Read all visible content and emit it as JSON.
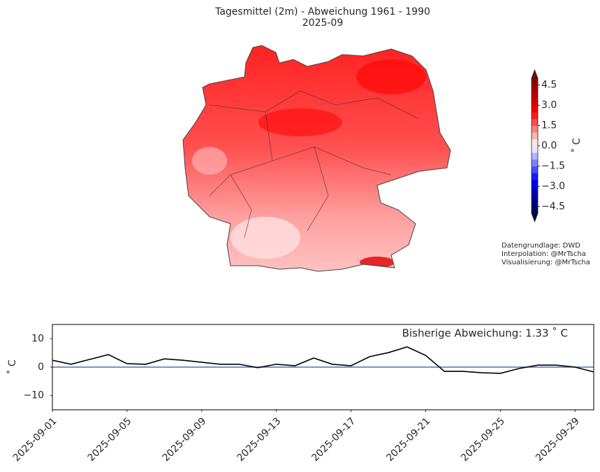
{
  "chart_data": [
    {
      "type": "map",
      "title": "Tagesmittel (2m) - Abweichung 1961 - 1990",
      "subtitle": "2025-09",
      "cmap": "seismic",
      "clim": [
        -5,
        5
      ],
      "clabel": "˚ C",
      "cticks": [
        {
          "value": 4.5,
          "label": "4.5"
        },
        {
          "value": 3,
          "label": "3.0"
        },
        {
          "value": 1.5,
          "label": "1.5"
        },
        {
          "value": 0,
          "label": "0.0"
        },
        {
          "value": -1.5,
          "label": "−1.5"
        },
        {
          "value": -3,
          "label": "−3.0"
        },
        {
          "value": -4.5,
          "label": "−4.5"
        }
      ],
      "credits": [
        "Datengrundlage: DWD",
        "Interpolation: @MrTscha",
        "Visualisierung: @MrTscha"
      ]
    },
    {
      "type": "line",
      "annotation": "Bisherige Abweichung: 1.33 ˚ C",
      "ylabel": "˚ C",
      "color": "#000000",
      "x": [
        "2025-09-01",
        "2025-09-02",
        "2025-09-03",
        "2025-09-04",
        "2025-09-05",
        "2025-09-06",
        "2025-09-07",
        "2025-09-08",
        "2025-09-09",
        "2025-09-10",
        "2025-09-11",
        "2025-09-12",
        "2025-09-13",
        "2025-09-14",
        "2025-09-15",
        "2025-09-16",
        "2025-09-17",
        "2025-09-18",
        "2025-09-19",
        "2025-09-20",
        "2025-09-21",
        "2025-09-22",
        "2025-09-23",
        "2025-09-24",
        "2025-09-25",
        "2025-09-26",
        "2025-09-27",
        "2025-09-28",
        "2025-09-29",
        "2025-09-30"
      ],
      "values": [
        2.4,
        1.0,
        2.7,
        4.4,
        1.2,
        1.0,
        2.9,
        2.4,
        1.7,
        1.0,
        1.0,
        -0.2,
        1.0,
        0.5,
        3.2,
        1.0,
        0.5,
        3.7,
        5.1,
        7.1,
        4.1,
        -1.5,
        -1.5,
        -2.0,
        -2.2,
        -0.5,
        0.7,
        0.7,
        0.0,
        -1.7
      ],
      "hline": 0,
      "hline_color": "#4c72b0",
      "xlim": [
        "2025-09-01",
        "2025-09-30"
      ],
      "xticks": [
        "2025-09-01",
        "2025-09-05",
        "2025-09-09",
        "2025-09-13",
        "2025-09-17",
        "2025-09-21",
        "2025-09-25",
        "2025-09-29"
      ],
      "ylim": [
        -15,
        15
      ],
      "yticks": [
        {
          "value": -10,
          "label": "−10"
        },
        0,
        10
      ]
    }
  ]
}
